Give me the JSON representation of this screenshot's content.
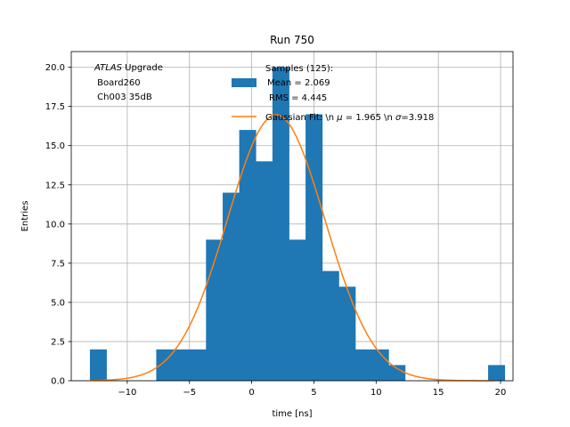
{
  "chart_data": {
    "type": "bar",
    "title": "Run 750",
    "xlabel": "time [ns]",
    "ylabel": "Entries",
    "xlim": [
      -14.5,
      21.0
    ],
    "ylim": [
      0,
      21.0
    ],
    "grid": true,
    "xticks": [
      -10,
      -5,
      0,
      5,
      10,
      15,
      20
    ],
    "xtick_labels": [
      "−10",
      "−5",
      "0",
      "5",
      "10",
      "15",
      "20"
    ],
    "yticks": [
      0,
      2.5,
      5,
      7.5,
      10,
      12.5,
      15,
      17.5,
      20
    ],
    "ytick_labels": [
      "0.0",
      "2.5",
      "5.0",
      "7.5",
      "10.0",
      "12.5",
      "15.0",
      "17.5",
      "20.0"
    ],
    "histogram": {
      "name": "Samples (125)",
      "color": "#1f77b4",
      "bin_edges": [
        -13.0,
        -11.67,
        -10.33,
        -9.0,
        -7.67,
        -6.33,
        -5.0,
        -3.67,
        -2.33,
        -1.0,
        0.33,
        1.67,
        3.0,
        4.33,
        5.67,
        7.0,
        8.33,
        9.67,
        11.0,
        12.33,
        13.67,
        15.0,
        16.33,
        17.67,
        19.0,
        20.33
      ],
      "counts": [
        2,
        0,
        0,
        0,
        2,
        2,
        2,
        9,
        12,
        16,
        14,
        20,
        9,
        17,
        7,
        6,
        2,
        2,
        1,
        0,
        0,
        0,
        0,
        0,
        1
      ]
    },
    "fit": {
      "name": "Gaussian Fit",
      "color": "#ff7f0e",
      "amplitude": 16.97,
      "mu": 1.965,
      "sigma": 3.918,
      "x_start": -13.0,
      "x_end": 19.5
    },
    "legend_location": "top-right",
    "legend": {
      "samples_lines": [
        "Samples (125):",
        "Mean = 2.069",
        "RMS = 4.445"
      ],
      "fit_prefix": "Gaussian Fit: \\n ",
      "mu_symbol": "μ",
      "mu_text": " = 1.965 \\n ",
      "sigma_symbol": "σ",
      "sigma_text": "=3.918"
    },
    "annotation": {
      "italic": "ATLAS",
      "rest": " Upgrade",
      "line2": " Board260",
      "line3": " Ch003 35dB"
    }
  }
}
